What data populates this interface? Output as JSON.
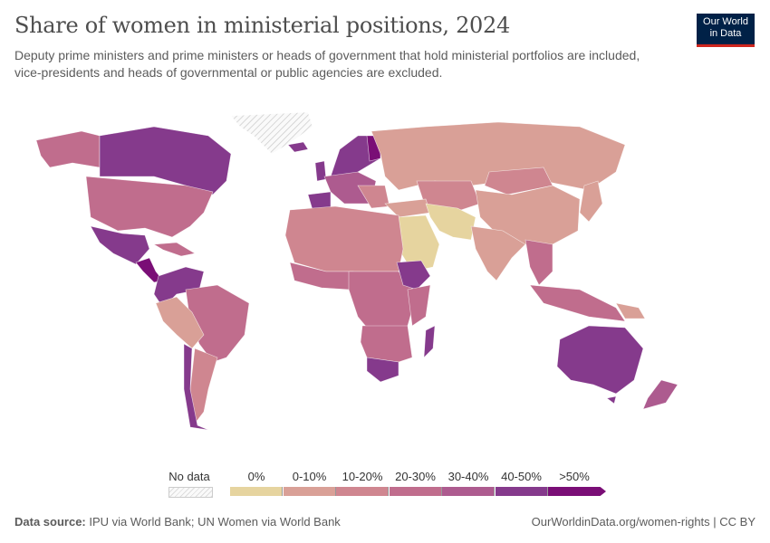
{
  "title": "Share of women in ministerial positions, 2024",
  "subtitle": "Deputy prime ministers and prime ministers or heads of government that hold ministerial portfolios are included, vice-presidents and heads of governmental or public agencies are excluded.",
  "logo": {
    "line1": "Our World",
    "line2": "in Data"
  },
  "legend": {
    "no_data": {
      "label": "No data",
      "color": "#f2f2f2"
    },
    "bins": [
      {
        "label": "0%",
        "color": "#e6d49f"
      },
      {
        "label": "0-10%",
        "color": "#d9a097"
      },
      {
        "label": "10-20%",
        "color": "#cf8690"
      },
      {
        "label": "20-30%",
        "color": "#c06d8d"
      },
      {
        "label": "30-40%",
        "color": "#ad5b8f"
      },
      {
        "label": "40-50%",
        "color": "#853a8c"
      },
      {
        "label": ">50%",
        "color": "#7a0e76"
      }
    ]
  },
  "footer": {
    "source_label": "Data source:",
    "source": "IPU via World Bank; UN Women via World Bank",
    "url_license": "OurWorldinData.org/women-rights | CC BY"
  }
}
